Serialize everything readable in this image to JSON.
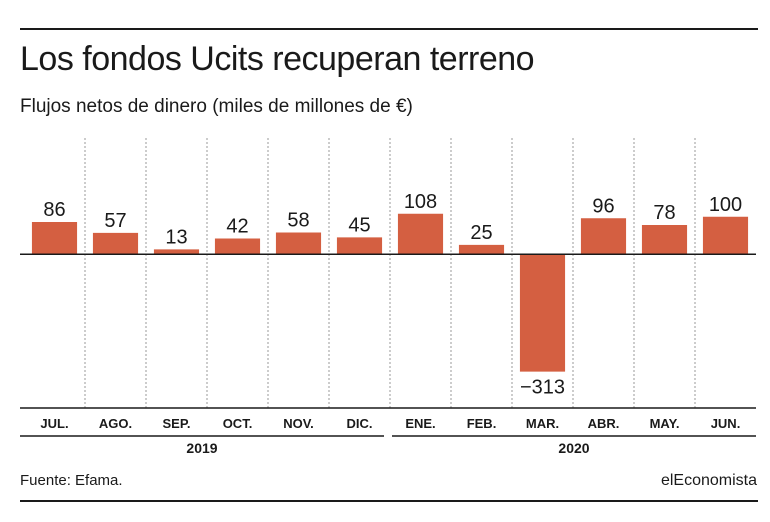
{
  "header": {
    "title": "Los fondos Ucits recuperan terreno",
    "subtitle": "Flujos netos de dinero (miles de millones de €)"
  },
  "footer": {
    "source": "Fuente: Efama.",
    "brand": "elEconomista"
  },
  "colors": {
    "bar": "#d45f41",
    "text": "#1a1a1a",
    "grid": "#9a9a9a"
  },
  "chart_data": {
    "type": "bar",
    "categories": [
      "JUL.",
      "AGO.",
      "SEP.",
      "OCT.",
      "NOV.",
      "DIC.",
      "ENE.",
      "FEB.",
      "MAR.",
      "ABR.",
      "MAY.",
      "JUN."
    ],
    "values": [
      86,
      57,
      13,
      42,
      58,
      45,
      108,
      25,
      -313,
      96,
      78,
      100
    ],
    "data_labels": [
      "86",
      "57",
      "13",
      "42",
      "58",
      "45",
      "108",
      "25",
      "−313",
      "96",
      "78",
      "100"
    ],
    "groups": [
      {
        "label": "2019",
        "categories": [
          "JUL.",
          "AGO.",
          "SEP.",
          "OCT.",
          "NOV.",
          "DIC."
        ]
      },
      {
        "label": "2020",
        "categories": [
          "ENE.",
          "FEB.",
          "MAR.",
          "ABR.",
          "MAY.",
          "JUN."
        ]
      }
    ],
    "title": "Los fondos Ucits recuperan terreno",
    "ylabel": "",
    "xlabel": "",
    "ylim": [
      -410,
      310
    ],
    "grid": "vertical dashed separators",
    "legend": "none"
  }
}
